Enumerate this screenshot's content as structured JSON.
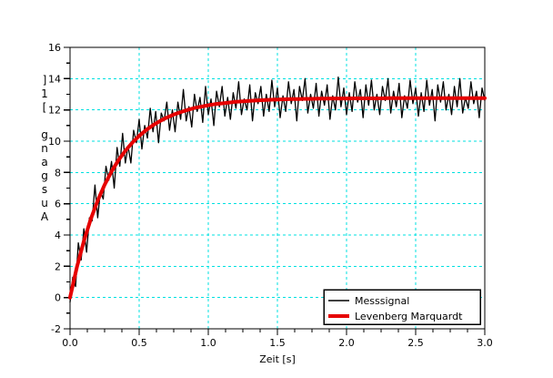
{
  "figure": {
    "background": "#ffffff",
    "frame_color": "#000000"
  },
  "chart_data": {
    "type": "line",
    "title": "",
    "xlabel": "Zeit [s]",
    "ylabel": "Ausgang [1]",
    "ylabel_orientation": "vertical-stacked-read-bottom-up",
    "xlim": [
      0.0,
      3.0
    ],
    "ylim": [
      -2,
      16
    ],
    "xticks": [
      "0.0",
      "0.5",
      "1.0",
      "1.5",
      "2.0",
      "2.5",
      "3.0"
    ],
    "yticks": [
      "-2",
      "0",
      "2",
      "4",
      "6",
      "8",
      "10",
      "12",
      "14",
      "16"
    ],
    "x_minor_divisions": 4,
    "y_minor_divisions": 2,
    "grid": {
      "show": true,
      "color": "#00e0e0",
      "style": "dashed"
    },
    "legend": {
      "position": "lower-right",
      "border_color": "#000000",
      "background": "#ffffff"
    },
    "series": [
      {
        "name": "Messsignal",
        "color": "#000000",
        "width": 1.3,
        "x_start": 0,
        "x_step": 0.02,
        "values": [
          -0.3,
          1.3,
          0.7,
          3.5,
          2.4,
          4.4,
          2.9,
          5.1,
          4.9,
          7.2,
          5.1,
          6.8,
          6.3,
          8.4,
          7.5,
          8.7,
          7.0,
          9.6,
          8.4,
          10.5,
          8.6,
          9.7,
          8.6,
          10.7,
          9.9,
          11.4,
          9.5,
          11.0,
          10.2,
          12.1,
          10.6,
          11.9,
          9.9,
          11.8,
          11.3,
          12.5,
          10.7,
          12.0,
          10.6,
          12.5,
          11.4,
          13.3,
          11.3,
          12.2,
          10.9,
          13.0,
          11.9,
          12.8,
          11.2,
          13.5,
          11.7,
          12.7,
          11.0,
          13.2,
          12.2,
          13.5,
          11.6,
          12.8,
          11.4,
          13.1,
          12.1,
          13.8,
          11.7,
          12.7,
          12.0,
          13.6,
          11.3,
          13.1,
          12.4,
          13.5,
          11.6,
          13.0,
          11.9,
          13.9,
          12.2,
          13.4,
          11.5,
          12.9,
          11.9,
          13.8,
          12.4,
          13.3,
          11.3,
          13.5,
          12.6,
          14.0,
          11.8,
          13.0,
          12.1,
          13.7,
          11.6,
          13.2,
          12.3,
          13.6,
          11.4,
          12.9,
          12.0,
          14.1,
          12.2,
          13.4,
          11.7,
          13.1,
          11.9,
          13.8,
          12.5,
          13.3,
          11.5,
          13.6,
          12.3,
          13.9,
          12.0,
          13.0,
          11.7,
          13.5,
          12.6,
          14.0,
          11.8,
          13.2,
          12.2,
          13.7,
          11.5,
          12.9,
          12.1,
          13.9,
          12.4,
          13.4,
          11.6,
          13.1,
          11.9,
          13.9,
          12.3,
          13.3,
          11.3,
          13.6,
          12.5,
          13.8,
          12.0,
          13.0,
          11.7,
          13.5,
          12.2,
          14.0,
          11.8,
          12.8,
          12.1,
          13.8,
          12.4,
          13.2,
          11.5,
          13.4,
          12.6
        ]
      },
      {
        "name": "Levenberg Marquardt",
        "color": "#e60000",
        "width": 4,
        "x_start": 0,
        "x_step": 0.05,
        "values": [
          0,
          1.96,
          3.61,
          5.02,
          6.2,
          7.21,
          8.06,
          8.78,
          9.39,
          9.9,
          10.34,
          10.71,
          11.02,
          11.29,
          11.51,
          11.7,
          11.86,
          12.0,
          12.12,
          12.21,
          12.3,
          12.37,
          12.42,
          12.47,
          12.52,
          12.55,
          12.58,
          12.61,
          12.63,
          12.65,
          12.66,
          12.68,
          12.69,
          12.7,
          12.71,
          12.71,
          12.72,
          12.72,
          12.73,
          12.73,
          12.73,
          12.74,
          12.74,
          12.74,
          12.74,
          12.74,
          12.75,
          12.75,
          12.75,
          12.75,
          12.75,
          12.75,
          12.75,
          12.75,
          12.75,
          12.75,
          12.75,
          12.75,
          12.75,
          12.75,
          12.75
        ]
      }
    ]
  }
}
